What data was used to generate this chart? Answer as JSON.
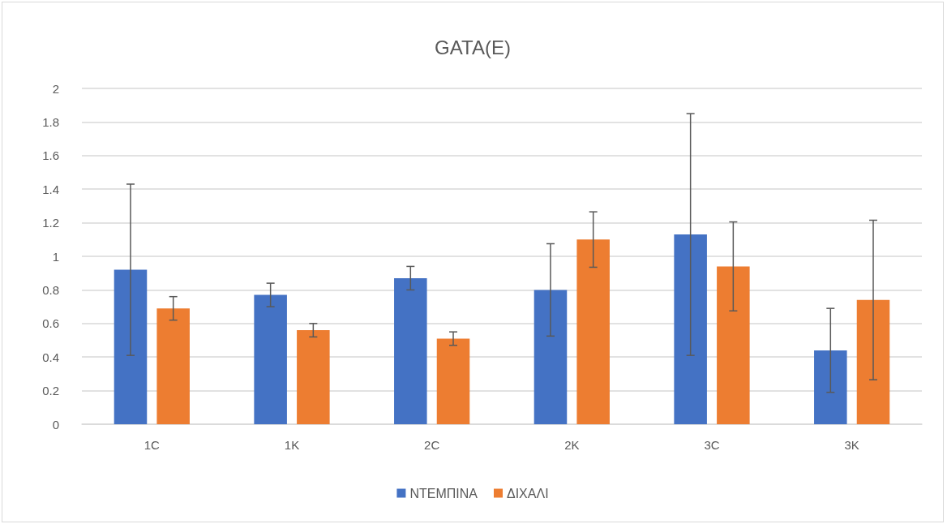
{
  "chart_data": {
    "type": "bar",
    "title": "GATA(E)",
    "categories": [
      "1C",
      "1K",
      "2C",
      "2K",
      "3C",
      "3K"
    ],
    "series": [
      {
        "name": "ΝΤΕΜΠΙΝΑ",
        "color": "#4472c4",
        "values": [
          0.92,
          0.77,
          0.87,
          0.8,
          1.13,
          0.44
        ],
        "errors": [
          0.51,
          0.07,
          0.07,
          0.275,
          0.72,
          0.25
        ]
      },
      {
        "name": "ΔΙΧΑΛΙ",
        "color": "#ed7d31",
        "values": [
          0.69,
          0.56,
          0.51,
          1.1,
          0.94,
          0.74
        ],
        "errors": [
          0.07,
          0.04,
          0.04,
          0.165,
          0.265,
          0.475
        ]
      }
    ],
    "ylim": [
      0,
      2
    ],
    "yticks": [
      0,
      0.2,
      0.4,
      0.6,
      0.8,
      1,
      1.2,
      1.4,
      1.6,
      1.8,
      2
    ],
    "grid": "y",
    "legend": "bottom"
  }
}
